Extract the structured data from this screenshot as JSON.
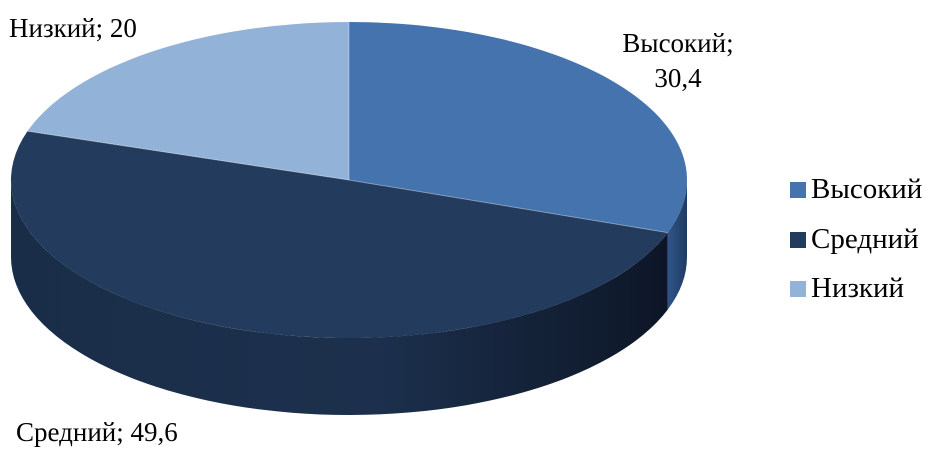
{
  "chart_data": {
    "type": "pie",
    "style": "3d",
    "title": "",
    "series": [
      {
        "name": "Высокий",
        "value": 30.4,
        "color": "#4473AD"
      },
      {
        "name": "Средний",
        "value": 49.6,
        "color": "#233B5C"
      },
      {
        "name": "Низкий",
        "value": 20,
        "color": "#93B2D7"
      }
    ],
    "data_labels": {
      "high": [
        "Высокий;",
        "30,4"
      ],
      "mid": "Средний; 49,6",
      "low": "Низкий; 20"
    },
    "legend": {
      "placement": "right",
      "items": [
        "Высокий",
        "Средний",
        "Низкий"
      ]
    }
  }
}
